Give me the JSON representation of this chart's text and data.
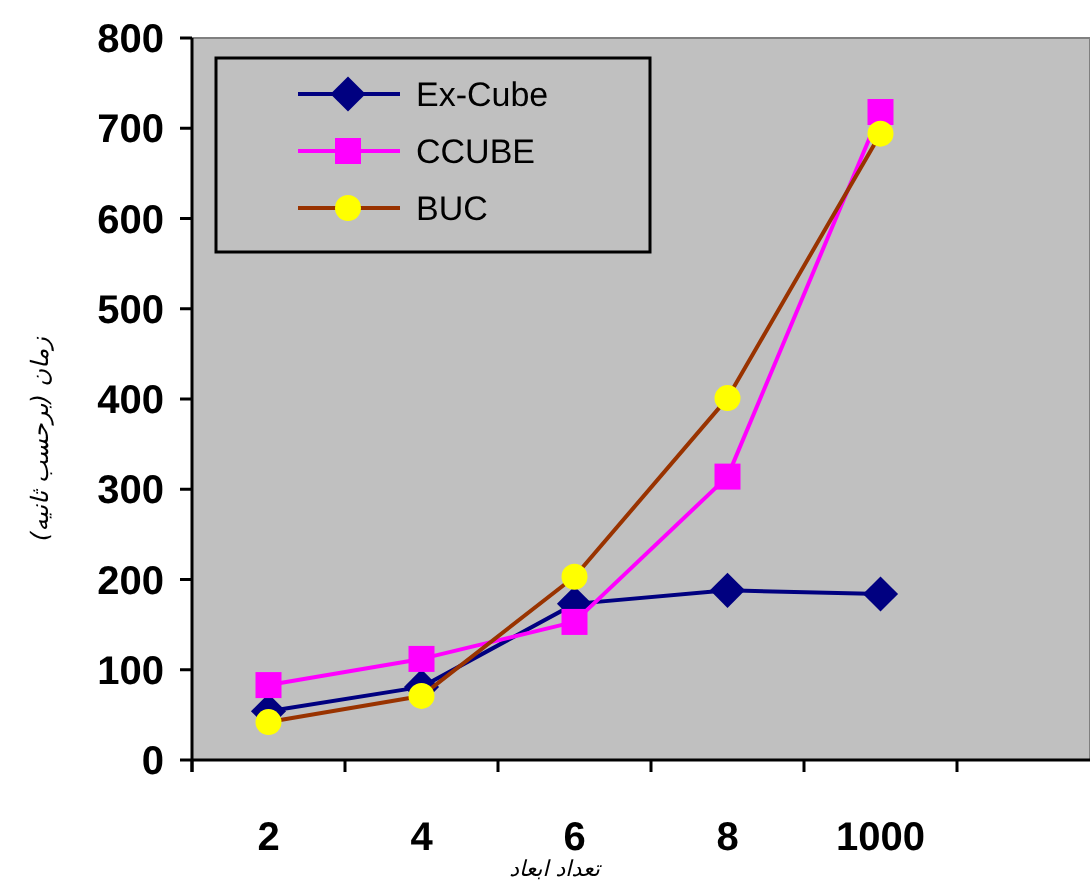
{
  "chart_data": {
    "type": "line",
    "xlabel": "تعداد ابعاد",
    "ylabel": "زمان (برحسب ثانیه)",
    "categories": [
      "2",
      "4",
      "6",
      "8",
      "1000",
      null
    ],
    "series": [
      {
        "name": "Ex-Cube",
        "color": "#000080",
        "marker": "diamond",
        "values": [
          54,
          81,
          173,
          188,
          184,
          null
        ]
      },
      {
        "name": "CCUBE",
        "color": "#ff00ff",
        "marker": "square",
        "values": [
          83,
          112,
          153,
          314,
          718,
          null
        ]
      },
      {
        "name": "BUC",
        "color": "#993300",
        "colors": [
          "#ffff00",
          "#ffff00",
          "#ffff00",
          "#ffff00",
          "#ffff00",
          null
        ],
        "marker": "circle",
        "values": [
          42,
          71,
          203,
          401,
          694,
          null
        ]
      }
    ],
    "ylim": [
      0,
      800
    ],
    "yticks": [
      0,
      100,
      200,
      300,
      400,
      500,
      600,
      700,
      800
    ],
    "grid": false,
    "legend": "top left",
    "line_style": "solid"
  }
}
